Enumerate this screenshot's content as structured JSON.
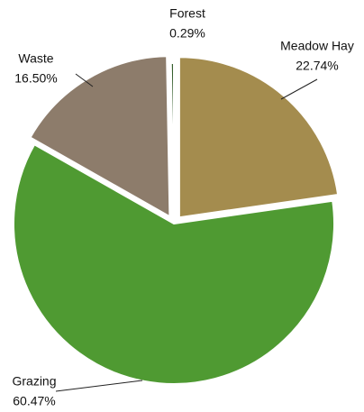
{
  "chart_data": {
    "type": "pie",
    "categories": [
      "Meadow Hay",
      "Grazing",
      "Waste",
      "Forest"
    ],
    "values": [
      22.74,
      60.47,
      16.5,
      0.29
    ],
    "value_labels": [
      "22.74%",
      "60.47%",
      "16.50%",
      "0.29%"
    ],
    "colors": [
      "#a48c4e",
      "#4f9a32",
      "#8d7c6b",
      "#355e2c"
    ],
    "exploded": [
      "Meadow Hay",
      "Waste"
    ]
  }
}
